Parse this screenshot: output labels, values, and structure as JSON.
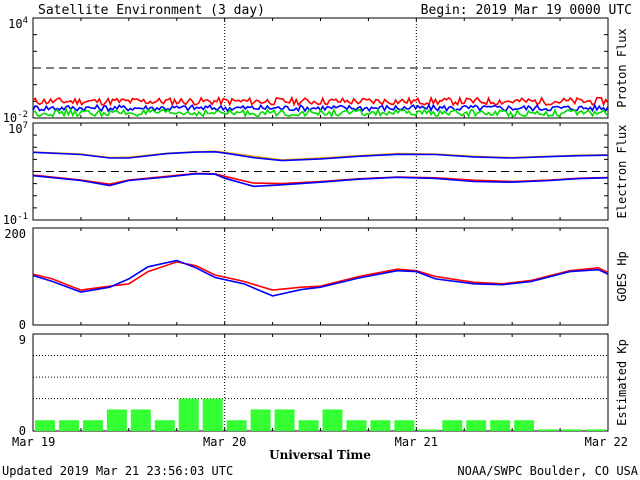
{
  "header": {
    "title": "Satellite Environment (3 day)",
    "begin": "Begin:  2019 Mar 19 0000 UTC"
  },
  "footer": {
    "updated": "Updated 2019 Mar 21 23:56:03 UTC",
    "credit": "NOAA/SWPC Boulder, CO USA"
  },
  "x_axis": {
    "label": "Universal Time",
    "ticks": [
      "Mar 19",
      "Mar 20",
      "Mar 21",
      "Mar 22"
    ]
  },
  "colors": {
    "red": "#ff0000",
    "blue": "#0000ff",
    "green": "#00dd00",
    "orange": "#ffa500",
    "kp_bar": "#33ff33",
    "axis": "#000000"
  },
  "chart_data": [
    {
      "type": "line",
      "id": "proton",
      "ylabel": "Proton Flux",
      "yscale": "log",
      "ylim": [
        0.01,
        10000
      ],
      "ytick_labels": [
        {
          "base": "10",
          "exp": "4"
        },
        {
          "base": "10",
          "exp": "-2"
        }
      ],
      "threshold": 10,
      "x_days": [
        0,
        3
      ],
      "series": [
        {
          "color": "red",
          "level": 0.1,
          "noise": 0.22
        },
        {
          "color": "blue",
          "level": 0.04,
          "noise": 0.18
        },
        {
          "color": "green",
          "level": 0.02,
          "noise": 0.2
        }
      ]
    },
    {
      "type": "line",
      "id": "electron",
      "ylabel": "Electron Flux",
      "yscale": "log",
      "ylim": [
        0.1,
        10000000
      ],
      "ytick_labels": [
        {
          "base": "10",
          "exp": "7"
        },
        {
          "base": "10",
          "exp": "-1"
        }
      ],
      "threshold": 1000,
      "x": [
        0,
        0.25,
        0.4,
        0.5,
        0.7,
        0.85,
        0.95,
        1.0,
        1.15,
        1.3,
        1.5,
        1.7,
        1.9,
        2.1,
        2.3,
        2.5,
        2.7,
        2.85,
        3.0
      ],
      "series": [
        {
          "color": "orange",
          "values": [
            40000,
            28000,
            14000,
            15000,
            32000,
            42000,
            46000,
            38000,
            18000,
            9000,
            13000,
            20000,
            30000,
            28000,
            18000,
            14000,
            18000,
            22000,
            24000
          ]
        },
        {
          "color": "blue",
          "values": [
            38000,
            25000,
            13000,
            13000,
            30000,
            40000,
            42000,
            33000,
            14000,
            8000,
            11000,
            18000,
            26000,
            25000,
            16000,
            13000,
            17000,
            20000,
            22000
          ]
        },
        {
          "color": "red",
          "values": [
            500,
            200,
            90,
            200,
            400,
            700,
            650,
            400,
            110,
            100,
            150,
            250,
            350,
            300,
            190,
            150,
            200,
            280,
            320
          ]
        },
        {
          "color": "blue",
          "values": [
            450,
            180,
            70,
            180,
            350,
            650,
            600,
            280,
            60,
            80,
            130,
            230,
            330,
            270,
            150,
            130,
            180,
            260,
            300
          ]
        }
      ]
    },
    {
      "type": "line",
      "id": "hp",
      "ylabel": "GOES Hp",
      "ylim": [
        0,
        200
      ],
      "yticks": [
        0,
        200
      ],
      "x": [
        0,
        0.1,
        0.25,
        0.4,
        0.5,
        0.6,
        0.75,
        0.85,
        0.95,
        1.1,
        1.25,
        1.4,
        1.5,
        1.7,
        1.9,
        2.0,
        2.1,
        2.3,
        2.45,
        2.6,
        2.8,
        2.95,
        3.0
      ],
      "series": [
        {
          "color": "red",
          "values": [
            105,
            95,
            72,
            80,
            85,
            110,
            130,
            122,
            103,
            90,
            72,
            78,
            80,
            100,
            115,
            112,
            100,
            88,
            85,
            92,
            112,
            118,
            108
          ]
        },
        {
          "color": "blue",
          "values": [
            102,
            90,
            68,
            78,
            95,
            120,
            133,
            118,
            98,
            85,
            60,
            73,
            78,
            97,
            112,
            110,
            95,
            85,
            83,
            90,
            110,
            114,
            105
          ]
        }
      ]
    },
    {
      "type": "bar",
      "id": "kp",
      "ylabel": "Estimated Kp",
      "ylim": [
        0,
        9
      ],
      "yticks": [
        0,
        9
      ],
      "interval_hours": 3,
      "values": [
        1,
        1,
        1,
        2,
        2,
        1,
        3,
        3,
        1,
        2,
        2,
        1,
        2,
        1,
        1,
        1,
        0,
        1,
        1,
        1,
        1,
        0,
        0,
        0
      ]
    }
  ]
}
